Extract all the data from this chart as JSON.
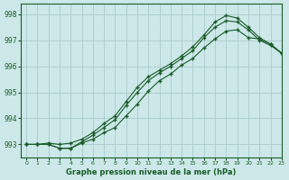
{
  "title": "Graphe pression niveau de la mer (hPa)",
  "bg_color": "#cce8e8",
  "grid_color": "#aacccc",
  "line_color": "#1a5c2a",
  "xlim": [
    -0.5,
    23
  ],
  "ylim": [
    992.5,
    998.4
  ],
  "yticks": [
    993,
    994,
    995,
    996,
    997,
    998
  ],
  "xticks": [
    0,
    1,
    2,
    3,
    4,
    5,
    6,
    7,
    8,
    9,
    10,
    11,
    12,
    13,
    14,
    15,
    16,
    17,
    18,
    19,
    20,
    21,
    22,
    23
  ],
  "series1": [
    993.0,
    993.0,
    993.0,
    992.85,
    992.85,
    993.05,
    993.2,
    993.45,
    993.65,
    994.1,
    994.55,
    995.05,
    995.45,
    995.7,
    996.05,
    996.3,
    996.7,
    997.05,
    997.35,
    997.4,
    997.1,
    997.05,
    996.85,
    996.5
  ],
  "series2": [
    993.0,
    993.0,
    993.0,
    992.85,
    992.85,
    993.1,
    993.35,
    993.65,
    993.95,
    994.5,
    995.0,
    995.45,
    995.75,
    996.0,
    996.3,
    996.6,
    997.1,
    997.5,
    997.75,
    997.7,
    997.4,
    997.0,
    996.8,
    996.5
  ],
  "series3": [
    993.0,
    993.0,
    993.05,
    993.0,
    993.05,
    993.2,
    993.45,
    993.8,
    994.1,
    994.65,
    995.2,
    995.6,
    995.85,
    996.1,
    996.4,
    996.75,
    997.2,
    997.7,
    997.95,
    997.85,
    997.5,
    997.1,
    996.85,
    996.5
  ]
}
